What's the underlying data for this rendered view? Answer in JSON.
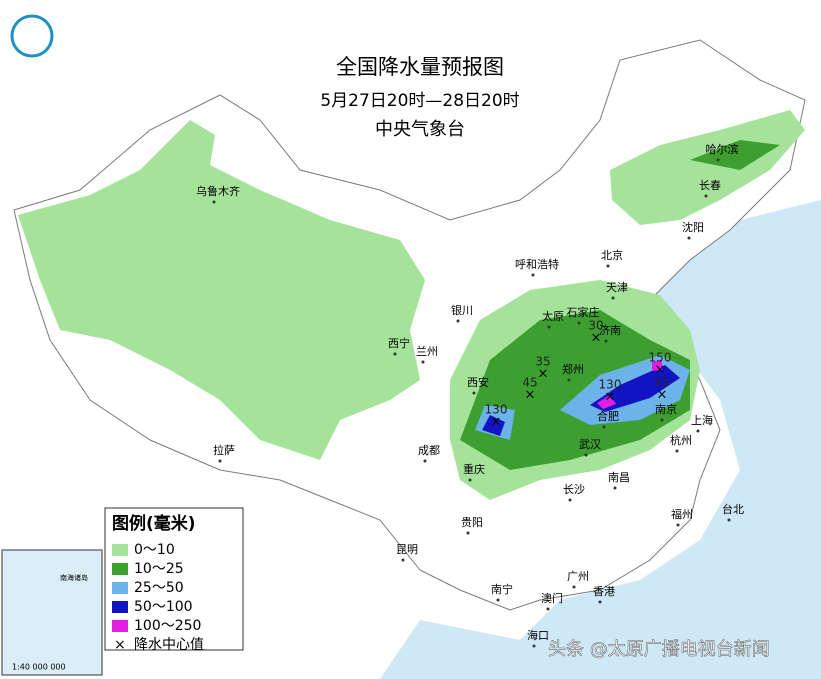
{
  "header": {
    "title": "全国降水量预报图",
    "subtitle": "5月27日20时—28日20时",
    "agency": "中央气象台"
  },
  "legend": {
    "title": "图例(毫米)",
    "items": [
      {
        "label": "0～10",
        "color": "#a6e39a"
      },
      {
        "label": "10～25",
        "color": "#3c9f30"
      },
      {
        "label": "25～50",
        "color": "#6cb3ea"
      },
      {
        "label": "50～100",
        "color": "#1214c4"
      },
      {
        "label": "100～250",
        "color": "#e01fe0"
      }
    ],
    "center_label": "降水中心值"
  },
  "cities": [
    "乌鲁木齐",
    "哈尔滨",
    "长春",
    "沈阳",
    "呼和浩特",
    "北京",
    "天津",
    "石家庄",
    "太原",
    "济南",
    "银川",
    "西宁",
    "兰州",
    "郑州",
    "西安",
    "合肥",
    "南京",
    "上海",
    "武汉",
    "杭州",
    "成都",
    "重庆",
    "拉萨",
    "长沙",
    "南昌",
    "贵阳",
    "昆明",
    "福州",
    "台北",
    "广州",
    "南宁",
    "澳门",
    "香港",
    "海口"
  ],
  "centers": [
    30,
    35,
    45,
    130,
    130,
    150,
    45
  ],
  "inset": {
    "label": "南海诸岛",
    "scale": "1:40 000 000"
  },
  "watermark": "头条 @太原广播电视台新闻"
}
